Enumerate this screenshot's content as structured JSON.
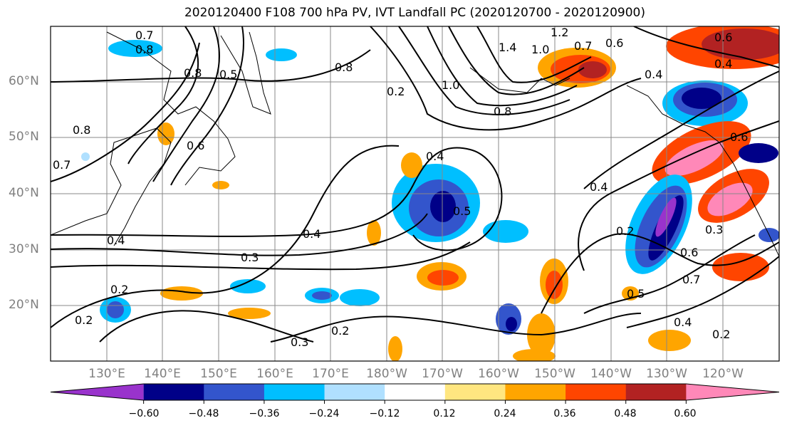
{
  "title": "2020120400 F108 700 hPa PV, IVT Landfall PC (2020120700 - 2020120900)",
  "latitude_labels": [
    "60°N",
    "50°N",
    "40°N",
    "30°N",
    "20°N"
  ],
  "longitude_labels": [
    "130°E",
    "140°E",
    "150°E",
    "160°E",
    "170°E",
    "180°W",
    "170°W",
    "160°W",
    "150°W",
    "140°W",
    "130°W",
    "120°W"
  ],
  "colorbar": {
    "tick_labels": [
      "−0.60",
      "−0.48",
      "−0.36",
      "−0.24",
      "−0.12",
      "0.12",
      "0.24",
      "0.36",
      "0.48",
      "0.60"
    ],
    "colors": [
      "#9933cc",
      "#000088",
      "#3355cc",
      "#00bfff",
      "#b0e0ff",
      "#ffffff",
      "#ffe680",
      "#ffa500",
      "#ff4500",
      "#b22222",
      "#ff88b8"
    ]
  },
  "contour_labels": [
    "0.7",
    "0.8",
    "0.8",
    "0.5",
    "0.6",
    "0.8",
    "0.7",
    "0.2",
    "0.4",
    "0.3",
    "0.4",
    "0.2",
    "0.3",
    "0.2",
    "0.2",
    "0.4",
    "1.4",
    "1.0",
    "1.2",
    "0.7",
    "0.6",
    "0.8",
    "0.6",
    "0.4",
    "0.4",
    "0.6",
    "0.4",
    "0.2",
    "0.5",
    "0.3",
    "0.6",
    "0.7",
    "0.4",
    "0.2",
    "0.5",
    "1.0",
    "0.8"
  ]
}
